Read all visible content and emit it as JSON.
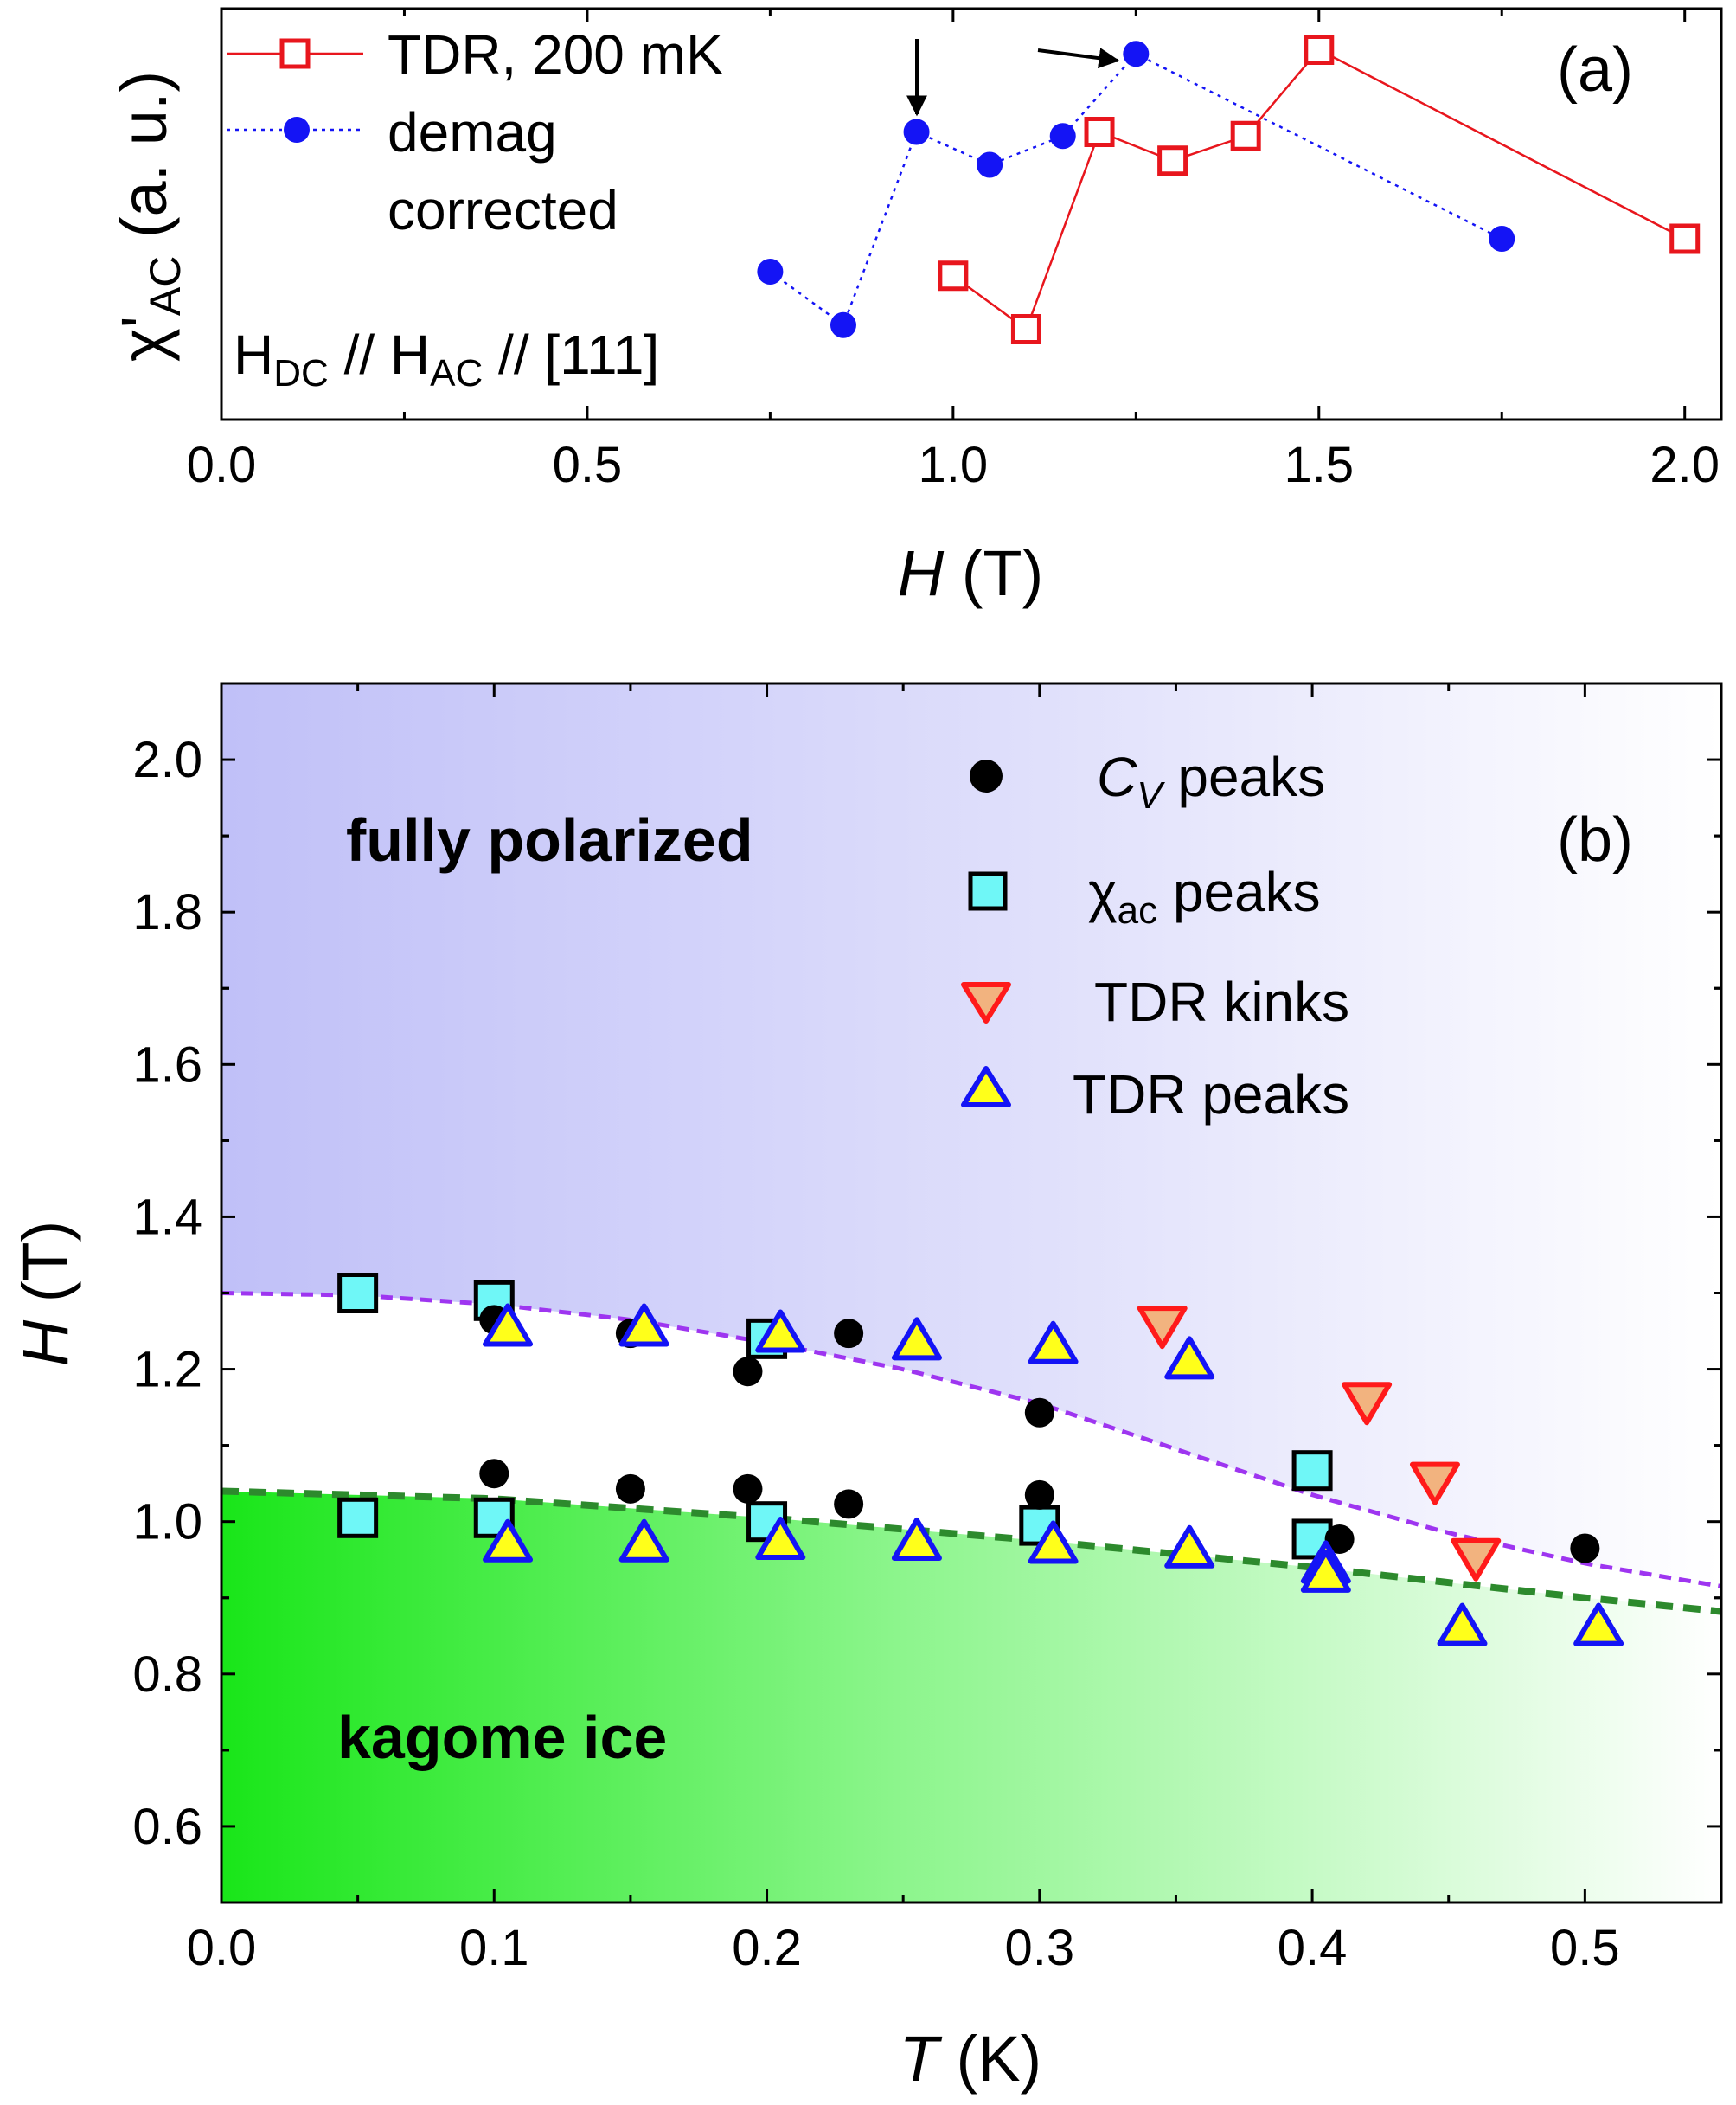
{
  "chart_data": [
    {
      "panel": "(a)",
      "type": "line",
      "xlabel": "H (T)",
      "xlabel_italic": "H",
      "xlabel_unit": "(T)",
      "ylabel": "χ'AC (a. u.)",
      "ylabel_parts": {
        "chi": "χ",
        "prime": "'",
        "sub": "AC",
        "unit": "(a. u.)"
      },
      "xlim": [
        0.0,
        2.05
      ],
      "ylim": [
        0.0,
        1.0
      ],
      "xticks": [
        "0.0",
        "0.5",
        "1.0",
        "1.5",
        "2.0"
      ],
      "xtick_values": [
        0.0,
        0.5,
        1.0,
        1.5,
        2.0
      ],
      "annotation": {
        "h": "H",
        "dc": "DC",
        "sep1": " // ",
        "h2": "H",
        "ac": "AC",
        "sep2": " // [111]"
      },
      "arrows_at": [
        0.95,
        1.25
      ],
      "series": [
        {
          "name": "TDR, 200 mK",
          "marker": "open-square",
          "color": "#e8161d",
          "linestyle": "solid",
          "x": [
            1.0,
            1.1,
            1.2,
            1.3,
            1.4,
            1.5,
            2.0
          ],
          "y": [
            0.35,
            0.22,
            0.7,
            0.63,
            0.69,
            0.9,
            0.44
          ]
        },
        {
          "name": "demag corrected",
          "name_lines": [
            "demag",
            "corrected"
          ],
          "marker": "filled-circle",
          "color": "#1414f5",
          "linestyle": "dotted",
          "x": [
            0.75,
            0.85,
            0.95,
            1.05,
            1.15,
            1.25,
            1.75
          ],
          "y": [
            0.36,
            0.23,
            0.7,
            0.62,
            0.69,
            0.89,
            0.44
          ]
        }
      ]
    },
    {
      "panel": "(b)",
      "type": "scatter",
      "xlabel": "T (K)",
      "xlabel_italic": "T",
      "xlabel_unit": "(K)",
      "ylabel": "H (T)",
      "ylabel_italic": "H",
      "ylabel_unit": "(T)",
      "xlim": [
        0.0,
        0.55
      ],
      "ylim": [
        0.5,
        2.1
      ],
      "xticks": [
        "0.0",
        "0.1",
        "0.2",
        "0.3",
        "0.4",
        "0.5"
      ],
      "xtick_values": [
        0.0,
        0.1,
        0.2,
        0.3,
        0.4,
        0.5
      ],
      "yticks": [
        "0.6",
        "0.8",
        "1.0",
        "1.2",
        "1.4",
        "1.6",
        "1.8",
        "2.0"
      ],
      "ytick_values": [
        0.6,
        0.8,
        1.0,
        1.2,
        1.4,
        1.6,
        1.8,
        2.0
      ],
      "regions": [
        "fully polarized",
        "kagome ice"
      ],
      "series": [
        {
          "name": "CV peaks",
          "label_main": "C",
          "label_sub": "V",
          "label_rest": " peaks",
          "marker": "filled-circle",
          "color": "#000000",
          "points": [
            [
              0.1,
              1.265
            ],
            [
              0.1,
              1.063
            ],
            [
              0.15,
              1.247
            ],
            [
              0.15,
              1.043
            ],
            [
              0.193,
              1.197
            ],
            [
              0.193,
              1.043
            ],
            [
              0.23,
              1.247
            ],
            [
              0.23,
              1.023
            ],
            [
              0.3,
              1.143
            ],
            [
              0.3,
              1.035
            ],
            [
              0.41,
              0.977
            ],
            [
              0.5,
              0.965
            ]
          ]
        },
        {
          "name": "χac peaks",
          "label_main": "χ",
          "label_sub": "ac",
          "label_rest": " peaks",
          "marker": "square",
          "color": "#6ff7f7",
          "points": [
            [
              0.05,
              1.3
            ],
            [
              0.05,
              1.005
            ],
            [
              0.1,
              1.29
            ],
            [
              0.1,
              1.005
            ],
            [
              0.2,
              1.24
            ],
            [
              0.2,
              1.0
            ],
            [
              0.3,
              0.995
            ],
            [
              0.4,
              1.067
            ],
            [
              0.4,
              0.977
            ]
          ]
        },
        {
          "name": "TDR kinks",
          "marker": "triangle-down",
          "color": "#f2b37f",
          "edge": "#ff1a1a",
          "points": [
            [
              0.345,
              1.255
            ],
            [
              0.42,
              1.155
            ],
            [
              0.445,
              1.05
            ],
            [
              0.46,
              0.95
            ]
          ]
        },
        {
          "name": "TDR peaks",
          "marker": "triangle-up",
          "color": "#ffff1a",
          "edge": "#1414f5",
          "points": [
            [
              0.105,
              1.258
            ],
            [
              0.155,
              1.258
            ],
            [
              0.205,
              1.25
            ],
            [
              0.255,
              1.24
            ],
            [
              0.305,
              1.235
            ],
            [
              0.355,
              1.215
            ],
            [
              0.105,
              0.975
            ],
            [
              0.155,
              0.975
            ],
            [
              0.205,
              0.978
            ],
            [
              0.255,
              0.977
            ],
            [
              0.305,
              0.973
            ],
            [
              0.355,
              0.967
            ],
            [
              0.405,
              0.947
            ],
            [
              0.405,
              0.935
            ],
            [
              0.455,
              0.865
            ],
            [
              0.505,
              0.865
            ]
          ]
        }
      ],
      "guide_lines": [
        {
          "name": "upper boundary",
          "color": "#9e35f0",
          "T0": 0.0,
          "H0": 1.3,
          "x": [
            0.0,
            0.05,
            0.1,
            0.15,
            0.2,
            0.25,
            0.3,
            0.35,
            0.4,
            0.45,
            0.5,
            0.55
          ],
          "y": [
            1.3,
            1.297,
            1.285,
            1.265,
            1.235,
            1.2,
            1.155,
            1.095,
            1.035,
            0.985,
            0.945,
            0.915
          ]
        },
        {
          "name": "lower boundary",
          "color": "#2d8a2d",
          "x": [
            0.0,
            0.1,
            0.2,
            0.3,
            0.4,
            0.5,
            0.55
          ],
          "y": [
            1.04,
            1.03,
            1.005,
            0.975,
            0.94,
            0.9,
            0.882
          ]
        }
      ]
    }
  ],
  "colors": {
    "tdr_red": "#e8161d",
    "demag_blue": "#1414f5",
    "polarized_fill": "#c3c3f8",
    "kagome_fill": "#1ee61e"
  }
}
